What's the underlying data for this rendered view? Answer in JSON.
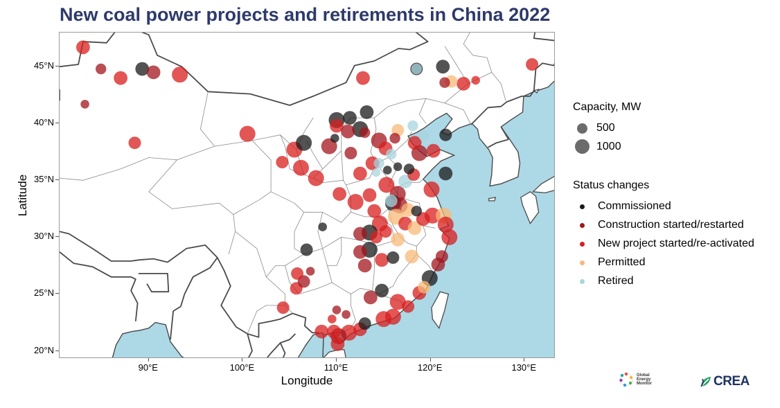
{
  "title": "New coal power projects and retirements in China 2022",
  "axes": {
    "xlabel": "Longitude",
    "ylabel": "Latitude",
    "xticks": [
      "90°E",
      "100°E",
      "110°E",
      "120°E",
      "130°E"
    ],
    "yticks": [
      "45°N",
      "40°N",
      "35°N",
      "30°N",
      "25°N",
      "20°N"
    ]
  },
  "legend": {
    "capacity_title": "Capacity, MW",
    "capacity_items": [
      "500",
      "1000"
    ],
    "status_title": "Status changes",
    "status_items": [
      {
        "label": "Commissioned",
        "color": "#1a1a1a"
      },
      {
        "label": "Construction started/restarted",
        "color": "#a3161c"
      },
      {
        "label": "New project started/re-activated",
        "color": "#d81e1e"
      },
      {
        "label": "Permitted",
        "color": "#f8b978"
      },
      {
        "label": "Retired",
        "color": "#a8d4de"
      }
    ]
  },
  "logos": {
    "gem_lines": [
      "Global",
      "Energy",
      "Monitor"
    ],
    "crea": "CREA"
  },
  "colors": {
    "sea": "#add8e6",
    "border_thick": "#4a4a4a",
    "border_thin": "#8a8a8a",
    "title": "#2d3a6b"
  },
  "map_extent": {
    "lon": [
      80.5,
      133.3
    ],
    "lat": [
      19.3,
      48.0
    ]
  },
  "chart_data": {
    "type": "scatter",
    "title": "New coal power projects and retirements in China 2022",
    "xlabel": "Longitude",
    "ylabel": "Latitude",
    "xlim": [
      80.5,
      133.3
    ],
    "ylim": [
      19.3,
      48.0
    ],
    "size_legend": "Capacity, MW",
    "points": [
      {
        "lon": 83.0,
        "lat": 46.7,
        "mw": 660,
        "status": "New project started/re-activated"
      },
      {
        "lon": 84.9,
        "lat": 44.8,
        "mw": 300,
        "status": "Construction started/restarted"
      },
      {
        "lon": 87.0,
        "lat": 44.0,
        "mw": 660,
        "status": "New project started/re-activated"
      },
      {
        "lon": 89.3,
        "lat": 44.8,
        "mw": 660,
        "status": "Commissioned"
      },
      {
        "lon": 90.5,
        "lat": 44.5,
        "mw": 660,
        "status": "Construction started/restarted"
      },
      {
        "lon": 93.3,
        "lat": 44.3,
        "mw": 1000,
        "status": "New project started/re-activated"
      },
      {
        "lon": 83.2,
        "lat": 41.7,
        "mw": 150,
        "status": "Construction started/restarted"
      },
      {
        "lon": 88.5,
        "lat": 38.3,
        "mw": 500,
        "status": "New project started/re-activated"
      },
      {
        "lon": 100.5,
        "lat": 39.1,
        "mw": 1000,
        "status": "New project started/re-activated"
      },
      {
        "lon": 104.2,
        "lat": 36.6,
        "mw": 500,
        "status": "New project started/re-activated"
      },
      {
        "lon": 105.5,
        "lat": 37.7,
        "mw": 1000,
        "status": "New project started/re-activated"
      },
      {
        "lon": 106.5,
        "lat": 38.3,
        "mw": 1000,
        "status": "Commissioned"
      },
      {
        "lon": 106.2,
        "lat": 36.1,
        "mw": 1000,
        "status": "New project started/re-activated"
      },
      {
        "lon": 107.8,
        "lat": 35.2,
        "mw": 1000,
        "status": "New project started/re-activated"
      },
      {
        "lon": 109.2,
        "lat": 38.0,
        "mw": 1000,
        "status": "Construction started/restarted"
      },
      {
        "lon": 110.0,
        "lat": 40.3,
        "mw": 1000,
        "status": "Commissioned"
      },
      {
        "lon": 110.0,
        "lat": 39.8,
        "mw": 660,
        "status": "New project started/re-activated"
      },
      {
        "lon": 111.4,
        "lat": 40.5,
        "mw": 660,
        "status": "Commissioned"
      },
      {
        "lon": 111.2,
        "lat": 39.3,
        "mw": 660,
        "status": "Construction started/restarted"
      },
      {
        "lon": 112.5,
        "lat": 39.5,
        "mw": 1000,
        "status": "Commissioned"
      },
      {
        "lon": 113.2,
        "lat": 41.0,
        "mw": 660,
        "status": "Commissioned"
      },
      {
        "lon": 112.8,
        "lat": 44.0,
        "mw": 660,
        "status": "New project started/re-activated"
      },
      {
        "lon": 111.5,
        "lat": 37.4,
        "mw": 500,
        "status": "Construction started/restarted"
      },
      {
        "lon": 114.5,
        "lat": 38.5,
        "mw": 1000,
        "status": "Construction started/restarted"
      },
      {
        "lon": 115.2,
        "lat": 37.8,
        "mw": 660,
        "status": "New project started/re-activated"
      },
      {
        "lon": 116.5,
        "lat": 39.4,
        "mw": 500,
        "status": "Permitted"
      },
      {
        "lon": 118.5,
        "lat": 44.8,
        "mw": 500,
        "status": "Commissioned"
      },
      {
        "lon": 118.5,
        "lat": 44.8,
        "mw": 300,
        "status": "Retired"
      },
      {
        "lon": 121.3,
        "lat": 45.0,
        "mw": 660,
        "status": "Commissioned"
      },
      {
        "lon": 122.2,
        "lat": 43.7,
        "mw": 500,
        "status": "Permitted"
      },
      {
        "lon": 123.5,
        "lat": 43.5,
        "mw": 660,
        "status": "New project started/re-activated"
      },
      {
        "lon": 121.5,
        "lat": 43.6,
        "mw": 300,
        "status": "Construction started/restarted"
      },
      {
        "lon": 124.8,
        "lat": 43.8,
        "mw": 150,
        "status": "New project started/re-activated"
      },
      {
        "lon": 130.8,
        "lat": 45.2,
        "mw": 500,
        "status": "New project started/re-activated"
      },
      {
        "lon": 121.6,
        "lat": 39.0,
        "mw": 500,
        "status": "Commissioned"
      },
      {
        "lon": 118.1,
        "lat": 39.8,
        "mw": 300,
        "status": "Retired"
      },
      {
        "lon": 118.3,
        "lat": 38.3,
        "mw": 660,
        "status": "New project started/re-activated"
      },
      {
        "lon": 118.8,
        "lat": 37.4,
        "mw": 1000,
        "status": "Construction started/restarted"
      },
      {
        "lon": 120.3,
        "lat": 37.6,
        "mw": 660,
        "status": "New project started/re-activated"
      },
      {
        "lon": 121.6,
        "lat": 35.6,
        "mw": 660,
        "status": "Commissioned"
      },
      {
        "lon": 118.2,
        "lat": 35.5,
        "mw": 500,
        "status": "New project started/re-activated"
      },
      {
        "lon": 117.3,
        "lat": 34.9,
        "mw": 660,
        "status": "Retired"
      },
      {
        "lon": 120.1,
        "lat": 34.2,
        "mw": 1000,
        "status": "New project started/re-activated"
      },
      {
        "lon": 116.5,
        "lat": 33.8,
        "mw": 1000,
        "status": "Construction started/restarted"
      },
      {
        "lon": 115.3,
        "lat": 34.6,
        "mw": 1000,
        "status": "New project started/re-activated"
      },
      {
        "lon": 113.8,
        "lat": 36.5,
        "mw": 660,
        "status": "New project started/re-activated"
      },
      {
        "lon": 112.5,
        "lat": 35.6,
        "mw": 660,
        "status": "New project started/re-activated"
      },
      {
        "lon": 110.3,
        "lat": 33.8,
        "mw": 660,
        "status": "New project started/re-activated"
      },
      {
        "lon": 112.0,
        "lat": 33.1,
        "mw": 1000,
        "status": "New project started/re-activated"
      },
      {
        "lon": 113.5,
        "lat": 33.7,
        "mw": 660,
        "status": "New project started/re-activated"
      },
      {
        "lon": 116.0,
        "lat": 33.0,
        "mw": 1000,
        "status": "Commissioned"
      },
      {
        "lon": 116.7,
        "lat": 32.8,
        "mw": 1000,
        "status": "Construction started/restarted"
      },
      {
        "lon": 117.6,
        "lat": 32.4,
        "mw": 660,
        "status": "Permitted"
      },
      {
        "lon": 118.5,
        "lat": 32.3,
        "mw": 300,
        "status": "Commissioned"
      },
      {
        "lon": 114.0,
        "lat": 32.3,
        "mw": 660,
        "status": "New project started/re-activated"
      },
      {
        "lon": 114.6,
        "lat": 31.2,
        "mw": 1000,
        "status": "New project started/re-activated"
      },
      {
        "lon": 116.3,
        "lat": 31.8,
        "mw": 1000,
        "status": "Permitted"
      },
      {
        "lon": 117.3,
        "lat": 31.2,
        "mw": 660,
        "status": "New project started/re-activated"
      },
      {
        "lon": 118.3,
        "lat": 30.8,
        "mw": 660,
        "status": "Permitted"
      },
      {
        "lon": 119.2,
        "lat": 31.6,
        "mw": 660,
        "status": "New project started/re-activated"
      },
      {
        "lon": 120.2,
        "lat": 31.9,
        "mw": 1000,
        "status": "New project started/re-activated"
      },
      {
        "lon": 121.4,
        "lat": 31.9,
        "mw": 1000,
        "status": "Permitted"
      },
      {
        "lon": 121.6,
        "lat": 31.1,
        "mw": 1000,
        "status": "New project started/re-activated"
      },
      {
        "lon": 122.0,
        "lat": 30.0,
        "mw": 1000,
        "status": "New project started/re-activated"
      },
      {
        "lon": 113.5,
        "lat": 30.4,
        "mw": 1000,
        "status": "Commissioned"
      },
      {
        "lon": 112.5,
        "lat": 30.3,
        "mw": 660,
        "status": "Construction started/restarted"
      },
      {
        "lon": 114.2,
        "lat": 30.0,
        "mw": 500,
        "status": "New project started/re-activated"
      },
      {
        "lon": 115.2,
        "lat": 30.5,
        "mw": 500,
        "status": "New project started/re-activated"
      },
      {
        "lon": 116.5,
        "lat": 29.8,
        "mw": 660,
        "status": "Permitted"
      },
      {
        "lon": 112.5,
        "lat": 28.7,
        "mw": 660,
        "status": "Construction started/restarted"
      },
      {
        "lon": 113.5,
        "lat": 28.9,
        "mw": 1000,
        "status": "Commissioned"
      },
      {
        "lon": 114.8,
        "lat": 28.0,
        "mw": 660,
        "status": "New project started/re-activated"
      },
      {
        "lon": 116.0,
        "lat": 28.2,
        "mw": 500,
        "status": "Commissioned"
      },
      {
        "lon": 118.0,
        "lat": 28.3,
        "mw": 660,
        "status": "Permitted"
      },
      {
        "lon": 113.0,
        "lat": 27.5,
        "mw": 660,
        "status": "Construction started/restarted"
      },
      {
        "lon": 120.8,
        "lat": 27.6,
        "mw": 660,
        "status": "Construction started/restarted"
      },
      {
        "lon": 121.2,
        "lat": 28.3,
        "mw": 500,
        "status": "Construction started/restarted"
      },
      {
        "lon": 119.9,
        "lat": 26.4,
        "mw": 1000,
        "status": "Commissioned"
      },
      {
        "lon": 119.3,
        "lat": 25.6,
        "mw": 500,
        "status": "Permitted"
      },
      {
        "lon": 118.8,
        "lat": 25.1,
        "mw": 660,
        "status": "New project started/re-activated"
      },
      {
        "lon": 114.8,
        "lat": 25.3,
        "mw": 660,
        "status": "Commissioned"
      },
      {
        "lon": 113.6,
        "lat": 24.7,
        "mw": 660,
        "status": "Construction started/restarted"
      },
      {
        "lon": 116.5,
        "lat": 24.3,
        "mw": 1000,
        "status": "New project started/re-activated"
      },
      {
        "lon": 117.6,
        "lat": 23.9,
        "mw": 500,
        "status": "New project started/re-activated"
      },
      {
        "lon": 115.0,
        "lat": 22.8,
        "mw": 1000,
        "status": "New project started/re-activated"
      },
      {
        "lon": 116.0,
        "lat": 23.0,
        "mw": 1000,
        "status": "New project started/re-activated"
      },
      {
        "lon": 113.0,
        "lat": 22.4,
        "mw": 500,
        "status": "Commissioned"
      },
      {
        "lon": 112.5,
        "lat": 21.9,
        "mw": 660,
        "status": "New project started/re-activated"
      },
      {
        "lon": 111.3,
        "lat": 21.6,
        "mw": 1000,
        "status": "New project started/re-activated"
      },
      {
        "lon": 110.2,
        "lat": 21.3,
        "mw": 1000,
        "status": "Construction started/restarted"
      },
      {
        "lon": 109.7,
        "lat": 21.7,
        "mw": 660,
        "status": "New project started/re-activated"
      },
      {
        "lon": 108.4,
        "lat": 21.7,
        "mw": 660,
        "status": "New project started/re-activated"
      },
      {
        "lon": 110.1,
        "lat": 20.6,
        "mw": 660,
        "status": "New project started/re-activated"
      },
      {
        "lon": 104.3,
        "lat": 23.8,
        "mw": 500,
        "status": "New project started/re-activated"
      },
      {
        "lon": 105.7,
        "lat": 25.5,
        "mw": 500,
        "status": "New project started/re-activated"
      },
      {
        "lon": 106.5,
        "lat": 26.1,
        "mw": 500,
        "status": "Construction started/restarted"
      },
      {
        "lon": 105.8,
        "lat": 26.8,
        "mw": 500,
        "status": "New project started/re-activated"
      },
      {
        "lon": 106.8,
        "lat": 28.9,
        "mw": 500,
        "status": "Commissioned"
      },
      {
        "lon": 108.5,
        "lat": 30.9,
        "mw": 150,
        "status": "Commissioned"
      },
      {
        "lon": 107.2,
        "lat": 27.0,
        "mw": 150,
        "status": "Construction started/restarted"
      },
      {
        "lon": 110.0,
        "lat": 23.6,
        "mw": 150,
        "status": "Construction started/restarted"
      },
      {
        "lon": 111.0,
        "lat": 23.2,
        "mw": 150,
        "status": "Construction started/restarted"
      },
      {
        "lon": 109.5,
        "lat": 22.8,
        "mw": 150,
        "status": "New project started/re-activated"
      },
      {
        "lon": 114.5,
        "lat": 36.5,
        "mw": 300,
        "status": "Retired"
      },
      {
        "lon": 115.8,
        "lat": 37.3,
        "mw": 300,
        "status": "Retired"
      },
      {
        "lon": 117.7,
        "lat": 36.0,
        "mw": 300,
        "status": "Commissioned"
      },
      {
        "lon": 116.5,
        "lat": 36.2,
        "mw": 150,
        "status": "Commissioned"
      },
      {
        "lon": 115.4,
        "lat": 35.9,
        "mw": 150,
        "status": "Commissioned"
      },
      {
        "lon": 114.2,
        "lat": 35.7,
        "mw": 150,
        "status": "Retired"
      },
      {
        "lon": 115.8,
        "lat": 33.2,
        "mw": 500,
        "status": "Retired"
      },
      {
        "lon": 109.8,
        "lat": 38.7,
        "mw": 150,
        "status": "Commissioned"
      },
      {
        "lon": 113.0,
        "lat": 39.2,
        "mw": 300,
        "status": "Construction started/restarted"
      },
      {
        "lon": 116.2,
        "lat": 38.7,
        "mw": 300,
        "status": "Construction started/restarted"
      },
      {
        "lon": 119.3,
        "lat": 38.9,
        "mw": 300,
        "status": "Retired"
      }
    ]
  }
}
